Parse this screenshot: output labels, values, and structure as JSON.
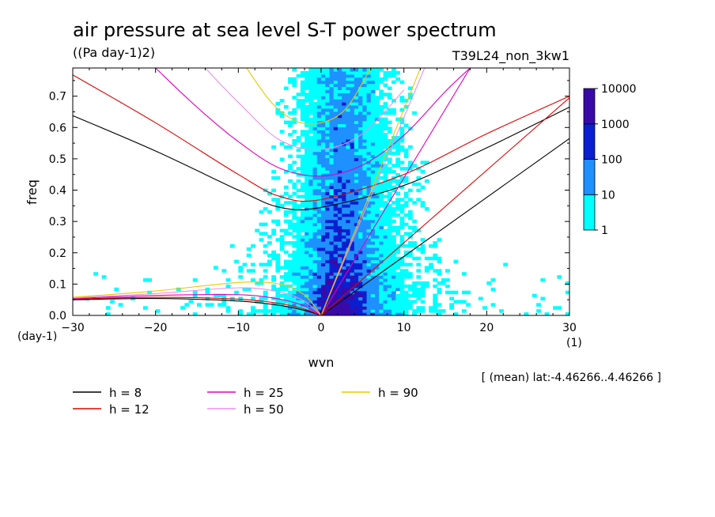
{
  "chart_data": {
    "type": "heatmap",
    "title": "air pressure at sea level S-T power spectrum",
    "units": "((Pa day-1)2)",
    "run_label": "T39L24_non_3kw1",
    "xlabel": "wvn",
    "ylabel": "freq",
    "x_unit": "(1)",
    "y_unit": "(day-1)",
    "xlim": [
      -30,
      30
    ],
    "ylim": [
      0,
      0.79
    ],
    "x_ticks": [
      -30,
      -20,
      -10,
      0,
      10,
      20,
      30
    ],
    "y_ticks": [
      0.0,
      0.1,
      0.2,
      0.3,
      0.4,
      0.5,
      0.6,
      0.7
    ],
    "footnote": "[ (mean) lat:-4.46266..4.46266 ]",
    "colorbar": {
      "levels": [
        "1",
        "10",
        "100",
        "1000",
        "10000"
      ],
      "colors": [
        "#00ffff",
        "#1e90ff",
        "#0a1fd0",
        "#3a0aa8"
      ]
    },
    "contour_fill_summary": [
      {
        "level": "1",
        "wvn_range": [
          -12,
          15
        ],
        "freq_range": [
          0,
          0.79
        ]
      },
      {
        "level": "10",
        "wvn_range": [
          -3,
          8
        ],
        "freq_range": [
          0,
          0.79
        ]
      },
      {
        "level": "100",
        "wvn_range": [
          -2,
          5
        ],
        "freq_range": [
          0,
          0.2
        ]
      },
      {
        "level": "1000",
        "wvn_range": [
          -1,
          3
        ],
        "freq_range": [
          0,
          0.07
        ]
      }
    ],
    "dispersion_curves": [
      {
        "name": "h =  8",
        "color": "#000000"
      },
      {
        "name": "h = 12",
        "color": "#e00000"
      },
      {
        "name": "h = 25",
        "color": "#e000c0"
      },
      {
        "name": "h = 50",
        "color": "#e890e8"
      },
      {
        "name": "h = 90",
        "color": "#e8c800"
      }
    ],
    "series": [
      {
        "name": "h =  8",
        "values": [
          {
            "type": "kelvin",
            "wvn": [
              0,
              30
            ],
            "freq": [
              0,
              0.565
            ]
          },
          {
            "type": "eig",
            "wvn": [
              -30,
              -20,
              -10,
              -5,
              0,
              10,
              20,
              30
            ],
            "freq": [
              0.638,
              0.525,
              0.4,
              0.345,
              0.345,
              0.415,
              0.535,
              0.665
            ]
          },
          {
            "type": "mrg",
            "wvn": [
              -30,
              -20,
              -10,
              -5,
              -2,
              0
            ],
            "freq": [
              0.05,
              0.054,
              0.046,
              0.032,
              0.016,
              0.0
            ]
          }
        ]
      },
      {
        "name": "h = 12",
        "values": [
          {
            "type": "kelvin",
            "wvn": [
              0,
              30
            ],
            "freq": [
              0,
              0.695
            ]
          },
          {
            "type": "eig",
            "wvn": [
              -30,
              -20,
              -10,
              -5,
              0,
              10,
              20,
              30
            ],
            "freq": [
              0.768,
              0.615,
              0.45,
              0.38,
              0.37,
              0.45,
              0.58,
              0.7
            ]
          },
          {
            "type": "mrg",
            "wvn": [
              -30,
              -20,
              -10,
              -5,
              -2,
              0
            ],
            "freq": [
              0.052,
              0.058,
              0.052,
              0.038,
              0.02,
              0.0
            ]
          }
        ]
      },
      {
        "name": "h = 25",
        "values": [
          {
            "type": "kelvin",
            "wvn": [
              0,
              18
            ],
            "freq": [
              0,
              0.79
            ]
          },
          {
            "type": "eig",
            "wvn": [
              -20,
              -15,
              -10,
              -5,
              0,
              5,
              10,
              15,
              18
            ],
            "freq": [
              0.79,
              0.665,
              0.555,
              0.47,
              0.445,
              0.48,
              0.575,
              0.715,
              0.79
            ]
          },
          {
            "type": "mrg",
            "wvn": [
              -30,
              -20,
              -10,
              -5,
              -2,
              0
            ],
            "freq": [
              0.054,
              0.064,
              0.066,
              0.052,
              0.03,
              0.0
            ]
          }
        ]
      },
      {
        "name": "h = 50",
        "values": [
          {
            "type": "kelvin",
            "wvn": [
              0,
              12.5
            ],
            "freq": [
              0,
              0.79
            ]
          },
          {
            "type": "eig",
            "wvn": [
              -14,
              -10,
              -5,
              0,
              5,
              10
            ],
            "freq": [
              0.79,
              0.68,
              0.56,
              0.53,
              0.58,
              0.72
            ]
          },
          {
            "type": "mrg",
            "wvn": [
              -30,
              -20,
              -10,
              -5,
              -2,
              0
            ],
            "freq": [
              0.056,
              0.07,
              0.088,
              0.075,
              0.045,
              0.0
            ]
          }
        ]
      },
      {
        "name": "h = 90",
        "values": [
          {
            "type": "kelvin",
            "wvn": [
              0,
              12
            ],
            "freq": [
              0,
              0.79
            ]
          },
          {
            "type": "eig",
            "wvn": [
              -9,
              -6,
              -3,
              0,
              3,
              6
            ],
            "freq": [
              0.79,
              0.68,
              0.62,
              0.615,
              0.66,
              0.79
            ]
          },
          {
            "type": "mrg",
            "wvn": [
              -30,
              -20,
              -10,
              -5,
              -2,
              0
            ],
            "freq": [
              0.058,
              0.078,
              0.105,
              0.1,
              0.065,
              0.0
            ]
          }
        ]
      }
    ]
  }
}
